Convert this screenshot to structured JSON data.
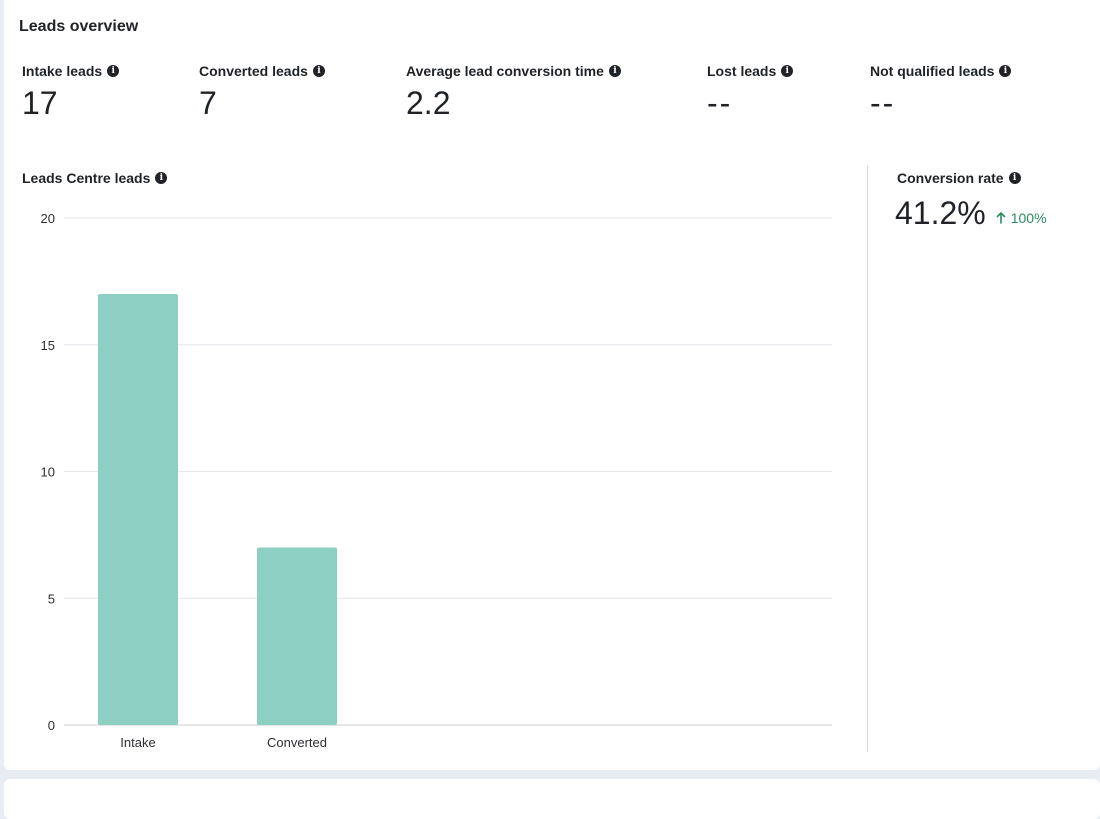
{
  "overview": {
    "title": "Leads overview",
    "metrics": [
      {
        "label": "Intake leads",
        "value": "17"
      },
      {
        "label": "Converted leads",
        "value": "7"
      },
      {
        "label": "Average lead conversion time",
        "value": "2.2"
      },
      {
        "label": "Lost leads",
        "value": "--"
      },
      {
        "label": "Not qualified leads",
        "value": "--"
      }
    ]
  },
  "chart_section": {
    "label": "Leads Centre leads"
  },
  "conversion": {
    "label": "Conversion rate",
    "value": "41.2%",
    "delta": "100%",
    "delta_color": "#2f8a5f"
  },
  "chart_data": {
    "type": "bar",
    "title": "Leads Centre leads",
    "categories": [
      "Intake",
      "Converted"
    ],
    "values": [
      17,
      7
    ],
    "ylim": [
      0,
      20
    ],
    "yticks": [
      0,
      5,
      10,
      15,
      20
    ],
    "grid": true,
    "bar_color": "#8dcfc2"
  }
}
